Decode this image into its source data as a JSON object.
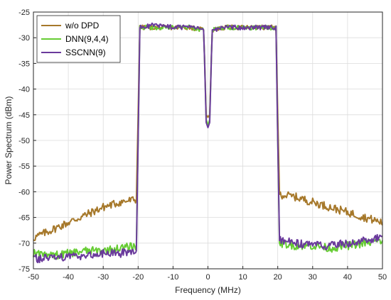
{
  "chart_data": {
    "type": "line",
    "xlabel": "Frequency (MHz)",
    "ylabel": "Power Spectrum (dBm)",
    "xlim": [
      -50,
      50
    ],
    "ylim": [
      -75,
      -25
    ],
    "xticks": [
      "-50",
      "-40",
      "-30",
      "-20",
      "-10",
      "0",
      "10",
      "20",
      "30",
      "40",
      "50"
    ],
    "yticks": [
      "-25",
      "-30",
      "-35",
      "-40",
      "-45",
      "-50",
      "-55",
      "-60",
      "-65",
      "-70",
      "-75"
    ],
    "grid": true,
    "legend_position": "top-left",
    "series": [
      {
        "name": "w/o DPD",
        "color": "#a6782a",
        "x": [
          -50,
          -45,
          -40,
          -35,
          -30,
          -25,
          -20.5,
          -20,
          -19.5,
          -15,
          -10,
          -5,
          -1.2,
          -0.5,
          0,
          0.5,
          1.2,
          5,
          10,
          15,
          19.5,
          20,
          20.5,
          25,
          30,
          35,
          40,
          45,
          50
        ],
        "y": [
          -69,
          -67.5,
          -66,
          -64.5,
          -63,
          -62,
          -61.5,
          -45,
          -28,
          -28,
          -28,
          -28,
          -28.5,
          -45,
          -45.5,
          -45,
          -28.5,
          -28,
          -28,
          -28,
          -28,
          -45,
          -60.5,
          -61,
          -62,
          -63,
          -64,
          -65,
          -66
        ]
      },
      {
        "name": "DNN(9,4,4)",
        "color": "#66cc33",
        "x": [
          -50,
          -45,
          -40,
          -35,
          -30,
          -25,
          -20.5,
          -20,
          -19.5,
          -15,
          -10,
          -5,
          -1.2,
          -0.5,
          0,
          0.5,
          1.2,
          5,
          10,
          15,
          19.5,
          20,
          20.5,
          25,
          30,
          35,
          40,
          45,
          50
        ],
        "y": [
          -72,
          -72.5,
          -72,
          -71.5,
          -71.5,
          -71,
          -70.5,
          -50,
          -28,
          -28,
          -28,
          -28,
          -28.5,
          -46,
          -47,
          -46,
          -28.5,
          -28,
          -28,
          -28,
          -28,
          -50,
          -70,
          -70.5,
          -70.5,
          -71,
          -70.5,
          -70,
          -69.5
        ]
      },
      {
        "name": "SSCNN(9)",
        "color": "#6a3a9c",
        "x": [
          -50,
          -45,
          -40,
          -35,
          -30,
          -25,
          -20.5,
          -20,
          -19.5,
          -15,
          -10,
          -5,
          -1.2,
          -0.5,
          0,
          0.5,
          1.2,
          5,
          10,
          15,
          19.5,
          20,
          20.5,
          25,
          30,
          35,
          40,
          45,
          50
        ],
        "y": [
          -73,
          -73,
          -72.5,
          -72.5,
          -72,
          -72,
          -71.5,
          -50,
          -28,
          -27.5,
          -28,
          -28,
          -28.5,
          -46.5,
          -47.5,
          -46.5,
          -28.5,
          -28,
          -28,
          -28,
          -28,
          -50,
          -69.5,
          -70,
          -70.5,
          -70.5,
          -70,
          -69.5,
          -69
        ]
      }
    ]
  }
}
